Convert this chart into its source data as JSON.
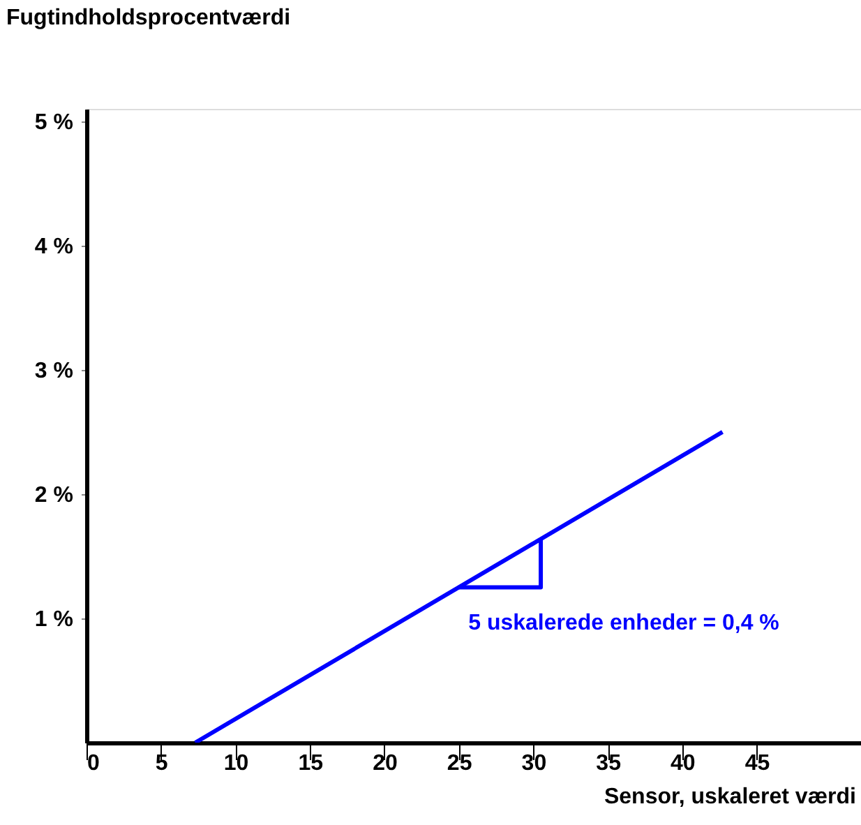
{
  "chart_data": {
    "type": "line",
    "xlabel": "Sensor, uskaleret værdi",
    "ylabel": "Fugtindholdsprocentværdi",
    "xlim": [
      0,
      52
    ],
    "xticks": [
      0,
      5,
      10,
      15,
      20,
      25,
      30,
      35,
      40,
      45
    ],
    "ylim": [
      0,
      5.1
    ],
    "yticks": [
      {
        "value": 1,
        "label": "1 %"
      },
      {
        "value": 2,
        "label": "2 %"
      },
      {
        "value": 3,
        "label": "3 %"
      },
      {
        "value": 4,
        "label": "4 %"
      },
      {
        "value": 5,
        "label": "5 %"
      }
    ],
    "grid": false,
    "line_style": "solid",
    "marker": "none",
    "series": [
      {
        "color": "#0000ff",
        "x": [
          7.3,
          42.7
        ],
        "values": [
          0,
          2.5
        ]
      },
      {
        "color": "#0000ff",
        "x": [
          25,
          30.5,
          30.5
        ],
        "values": [
          1.25,
          1.25,
          1.64
        ]
      }
    ],
    "annotations": [
      "5 uskalerede enheder = 0,4 %"
    ]
  }
}
